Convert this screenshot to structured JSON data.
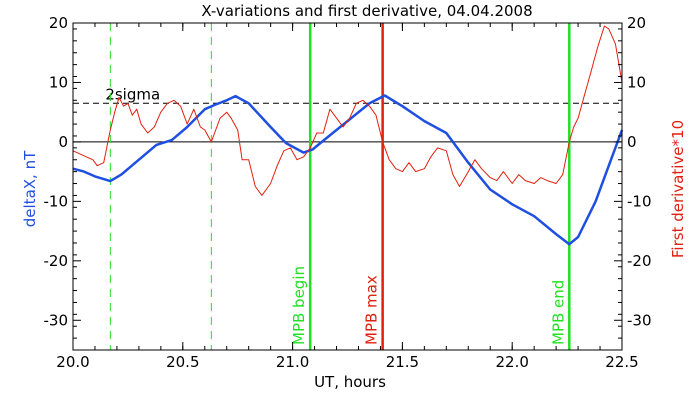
{
  "chart_data": {
    "type": "line",
    "title": "X-variations and first derivative, 04.04.2008",
    "xlabel": "UT, hours",
    "ylabel_left": "deltaX, nT",
    "ylabel_right": "First derivative*10",
    "xlim": [
      20.0,
      22.5
    ],
    "ylim_left": [
      -35,
      20
    ],
    "ylim_right": [
      -35,
      20
    ],
    "x_ticks": [
      "20.0",
      "20.5",
      "21.0",
      "21.5",
      "22.0",
      "22.5"
    ],
    "y_ticks_left": [
      "20",
      "10",
      "0",
      "-10",
      "-20",
      "-30"
    ],
    "y_ticks_right": [
      "20",
      "10",
      "0",
      "-10",
      "-20",
      "-30"
    ],
    "grid": false,
    "colors": {
      "deltaX": "#1f4fe0",
      "derivative": "#e02010",
      "phase_marker": "#22e022",
      "max_marker": "#e02010",
      "reference_line": "#000000"
    },
    "threshold": {
      "label": "2sigma",
      "value": 6.5,
      "style": "dashed"
    },
    "zero_line": 0,
    "markers": [
      {
        "x": 20.17,
        "label": "",
        "color": "#22e022",
        "style": "dashed"
      },
      {
        "x": 20.63,
        "label": "",
        "color": "#22e022",
        "style": "dashed"
      },
      {
        "x": 21.08,
        "label": "MPB begin",
        "color": "#22e022",
        "style": "solid"
      },
      {
        "x": 21.41,
        "label": "MPB max",
        "color": "#e02010",
        "style": "solid"
      },
      {
        "x": 22.26,
        "label": "MPB end",
        "color": "#22e022",
        "style": "solid"
      }
    ],
    "series": [
      {
        "axis": "left",
        "x": [
          20.0,
          20.05,
          20.1,
          20.17,
          20.22,
          20.3,
          20.38,
          20.45,
          20.52,
          20.6,
          20.65,
          20.7,
          20.74,
          20.8,
          20.9,
          20.97,
          21.05,
          21.09,
          21.15,
          21.25,
          21.35,
          21.42,
          21.5,
          21.6,
          21.7,
          21.8,
          21.9,
          22.0,
          22.1,
          22.2,
          22.26,
          22.3,
          22.38,
          22.45,
          22.5
        ],
        "values": [
          -4.5,
          -5.0,
          -5.8,
          -6.6,
          -5.5,
          -3.0,
          -0.5,
          0.3,
          2.5,
          5.5,
          6.3,
          7.0,
          7.7,
          6.5,
          2.5,
          -0.2,
          -1.8,
          -1.3,
          0.5,
          3.5,
          6.5,
          7.8,
          6.0,
          3.5,
          1.5,
          -3.5,
          -8.0,
          -10.5,
          -12.5,
          -15.5,
          -17.2,
          -16.0,
          -10.0,
          -3.0,
          2.0
        ]
      },
      {
        "axis": "right",
        "x": [
          20.0,
          20.03,
          20.06,
          20.09,
          20.11,
          20.14,
          20.17,
          20.19,
          20.21,
          20.23,
          20.25,
          20.27,
          20.29,
          20.31,
          20.34,
          20.37,
          20.4,
          20.43,
          20.46,
          20.49,
          20.52,
          20.55,
          20.58,
          20.6,
          20.63,
          20.65,
          20.67,
          20.7,
          20.72,
          20.75,
          20.77,
          20.8,
          20.83,
          20.86,
          20.9,
          20.93,
          20.96,
          20.99,
          21.02,
          21.05,
          21.08,
          21.11,
          21.14,
          21.17,
          21.2,
          21.23,
          21.26,
          21.29,
          21.32,
          21.35,
          21.38,
          21.41,
          21.44,
          21.47,
          21.5,
          21.53,
          21.56,
          21.6,
          21.63,
          21.66,
          21.7,
          21.73,
          21.76,
          21.8,
          21.83,
          21.86,
          21.9,
          21.93,
          21.96,
          22.0,
          22.03,
          22.06,
          22.1,
          22.13,
          22.16,
          22.2,
          22.23,
          22.26,
          22.28,
          22.3,
          22.33,
          22.36,
          22.39,
          22.42,
          22.44,
          22.47,
          22.5
        ],
        "values": [
          -1.5,
          -2.0,
          -2.5,
          -3.0,
          -4.0,
          -3.5,
          2.0,
          5.0,
          7.5,
          6.0,
          6.5,
          4.5,
          5.5,
          3.0,
          1.5,
          2.5,
          5.0,
          6.5,
          7.0,
          6.0,
          3.0,
          5.5,
          2.5,
          2.0,
          0.0,
          2.0,
          4.0,
          5.0,
          4.0,
          2.0,
          -3.0,
          -3.0,
          -7.5,
          -9.0,
          -7.0,
          -4.0,
          -1.5,
          -1.0,
          -3.0,
          -2.5,
          -1.0,
          1.5,
          1.5,
          5.5,
          4.0,
          2.5,
          4.0,
          6.5,
          7.0,
          6.0,
          4.5,
          0.0,
          -3.0,
          -4.5,
          -5.0,
          -3.5,
          -5.0,
          -4.5,
          -2.5,
          -1.0,
          -1.5,
          -5.5,
          -7.5,
          -5.0,
          -3.0,
          -4.5,
          -6.0,
          -6.5,
          -5.0,
          -7.0,
          -5.5,
          -6.5,
          -7.0,
          -6.0,
          -6.5,
          -7.0,
          -5.5,
          0.0,
          2.5,
          4.0,
          8.0,
          12.0,
          16.0,
          19.5,
          19.0,
          16.5,
          10.0
        ]
      }
    ]
  }
}
